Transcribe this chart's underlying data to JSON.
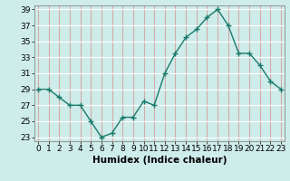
{
  "x": [
    0,
    1,
    2,
    3,
    4,
    5,
    6,
    7,
    8,
    9,
    10,
    11,
    12,
    13,
    14,
    15,
    16,
    17,
    18,
    19,
    20,
    21,
    22,
    23
  ],
  "y": [
    29,
    29,
    28,
    27,
    27,
    25,
    23,
    23.5,
    25.5,
    25.5,
    27.5,
    27,
    31,
    33.5,
    35.5,
    36.5,
    38,
    39,
    37,
    33.5,
    33.5,
    32,
    30,
    29
  ],
  "line_color": "#1a7a6a",
  "marker_color": "#1a7a6a",
  "bg_color": "#ceecea",
  "hgrid_color": "#ffffff",
  "vgrid_color": "#d4aaaa",
  "xlabel": "Humidex (Indice chaleur)",
  "ylim": [
    23,
    39
  ],
  "xlim": [
    0,
    23
  ],
  "yticks": [
    23,
    25,
    27,
    29,
    31,
    33,
    35,
    37,
    39
  ],
  "xticks": [
    0,
    1,
    2,
    3,
    4,
    5,
    6,
    7,
    8,
    9,
    10,
    11,
    12,
    13,
    14,
    15,
    16,
    17,
    18,
    19,
    20,
    21,
    22,
    23
  ],
  "marker_size": 2.5,
  "line_width": 1.0,
  "tick_fontsize": 6.5,
  "xlabel_fontsize": 7.5,
  "spine_color": "#888888"
}
